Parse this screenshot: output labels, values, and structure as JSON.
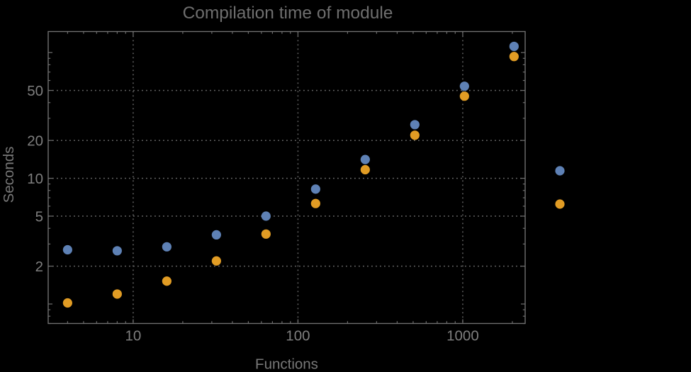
{
  "chart_data": {
    "type": "scatter",
    "title": "Compilation time of module",
    "xlabel": "Functions",
    "ylabel": "Seconds",
    "xscale": "log",
    "yscale": "log",
    "xlim": [
      3.05,
      2392
    ],
    "ylim": [
      0.7,
      147
    ],
    "grid": "dotted",
    "x": [
      4,
      8,
      16,
      32,
      64,
      128,
      256,
      512,
      1024,
      2048
    ],
    "series": [
      {
        "name": "series-1",
        "color": "#5e81b5",
        "values": [
          2.7,
          2.65,
          2.85,
          3.55,
          5.0,
          8.2,
          14.1,
          26.7,
          54,
          112
        ]
      },
      {
        "name": "series-2",
        "color": "#e19c24",
        "values": [
          1.02,
          1.2,
          1.52,
          2.2,
          3.6,
          6.3,
          11.7,
          22,
          45,
          93
        ]
      }
    ],
    "x_ticks": {
      "values": [
        10,
        100,
        1000
      ],
      "labels": [
        "10",
        "100",
        "1000"
      ]
    },
    "y_ticks": {
      "values": [
        2,
        5,
        10,
        20,
        50
      ],
      "labels": [
        "2",
        "5",
        "10",
        "20",
        "50"
      ],
      "unlabeled_major": [
        1,
        100
      ]
    },
    "x_gridlines": [
      10,
      100,
      1000
    ],
    "y_gridlines": [
      2,
      5,
      10,
      20,
      50
    ],
    "legend_markers": [
      {
        "series": "series-1",
        "color": "#5e81b5"
      },
      {
        "series": "series-2",
        "color": "#e19c24"
      }
    ],
    "legend_position": "right-outside",
    "legend_labels_visible": false
  },
  "style": {
    "background": "#000000",
    "frame_color": "#6f6f6f",
    "grid_color": "#6a6a6a",
    "title_color": "#6e6e6e",
    "axis_label_color": "#787878",
    "tick_label_color": "#7e7e7e"
  }
}
